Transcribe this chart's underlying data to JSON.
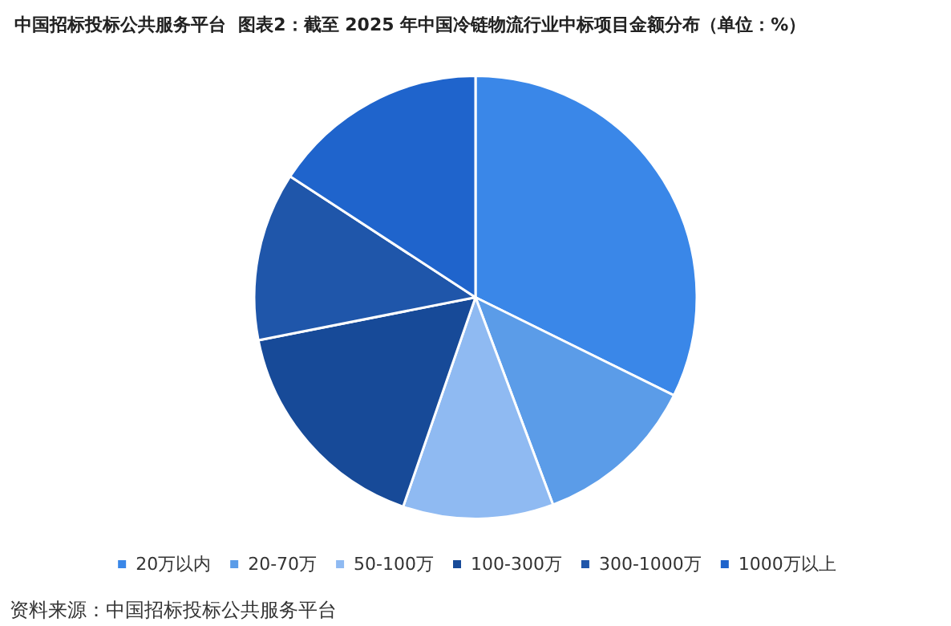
{
  "chart_data": {
    "type": "pie",
    "title": "中国招标投标公共服务平台  图表2：截至 2025 年中国冷链物流行业中标项目金额分布（单位：%）",
    "categories": [
      "20万以内",
      "20-70万",
      "50-100万",
      "100-300万",
      "300-1000万",
      "1000万以上"
    ],
    "values": [
      32.3,
      12,
      11,
      16.6,
      12.3,
      15.8
    ],
    "colors": [
      "#3a87e8",
      "#5b9ce8",
      "#8fbaf2",
      "#174a98",
      "#1f56aa",
      "#1f64cc"
    ],
    "legend": "bottom",
    "annotations": [
      "资料来源：中国招标投标公共服务平台"
    ]
  }
}
